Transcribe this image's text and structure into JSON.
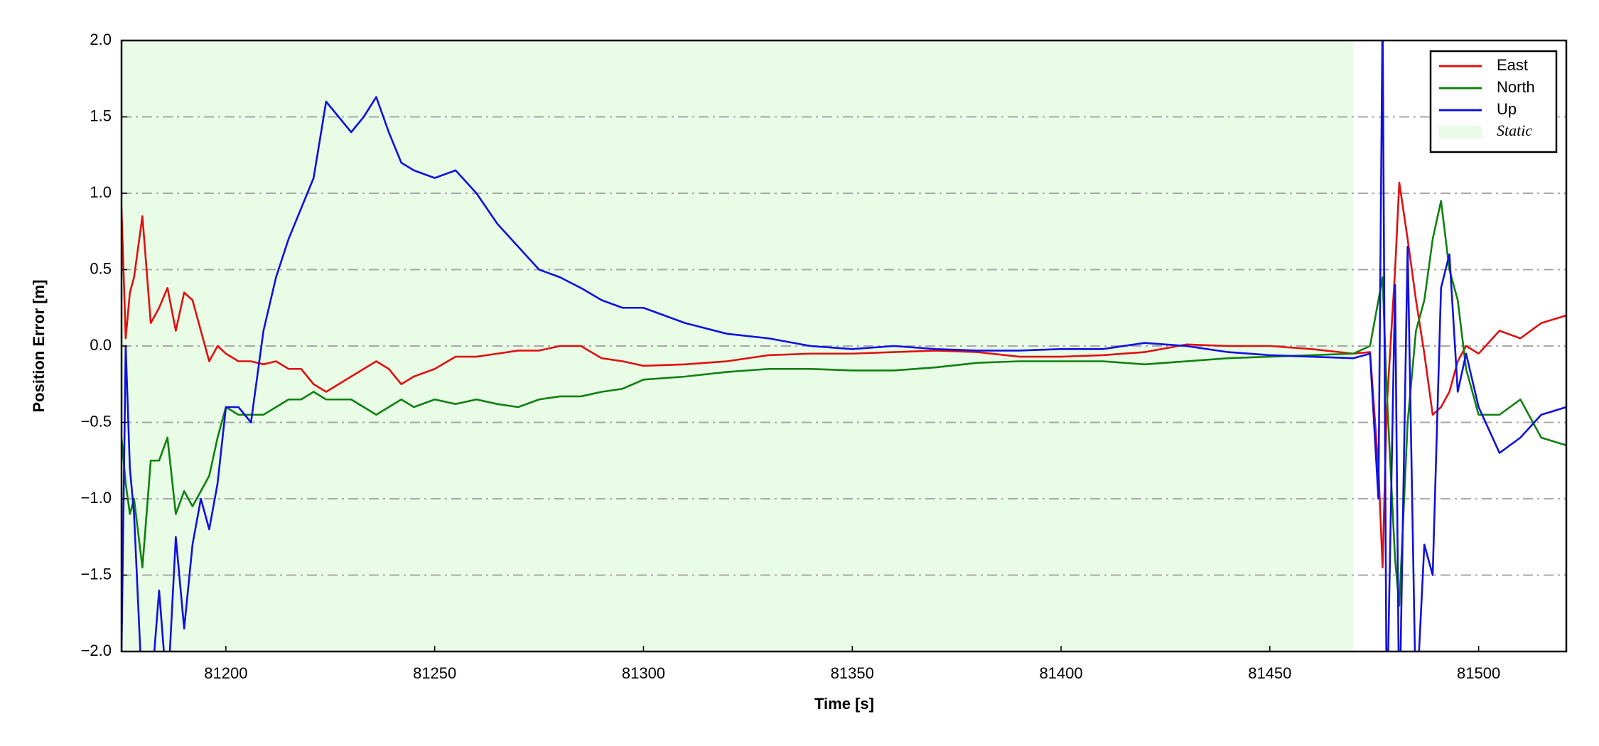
{
  "chart_data": {
    "type": "line",
    "xlabel": "Time [s]",
    "ylabel": "Position Error [m]",
    "x": [
      81175,
      81176,
      81177,
      81178,
      81180,
      81182,
      81184,
      81186,
      81188,
      81190,
      81192,
      81194,
      81196,
      81198,
      81200,
      81203,
      81206,
      81209,
      81212,
      81215,
      81218,
      81221,
      81224,
      81227,
      81230,
      81233,
      81236,
      81239,
      81242,
      81245,
      81250,
      81255,
      81260,
      81265,
      81270,
      81275,
      81280,
      81285,
      81290,
      81295,
      81300,
      81310,
      81320,
      81330,
      81340,
      81350,
      81360,
      81370,
      81380,
      81390,
      81400,
      81410,
      81420,
      81430,
      81440,
      81450,
      81460,
      81470,
      81474,
      81476,
      81477,
      81478,
      81480,
      81481,
      81483,
      81485,
      81487,
      81489,
      81491,
      81493,
      81495,
      81497,
      81500,
      81505,
      81510,
      81515,
      81521
    ],
    "series": [
      {
        "name": "East",
        "color": "#e01010",
        "values": [
          0.9,
          0.05,
          0.35,
          0.45,
          0.85,
          0.15,
          0.25,
          0.38,
          0.1,
          0.35,
          0.3,
          0.1,
          -0.1,
          0.0,
          -0.05,
          -0.1,
          -0.1,
          -0.12,
          -0.1,
          -0.15,
          -0.15,
          -0.25,
          -0.3,
          -0.25,
          -0.2,
          -0.15,
          -0.1,
          -0.15,
          -0.25,
          -0.2,
          -0.15,
          -0.07,
          -0.07,
          -0.05,
          -0.03,
          -0.03,
          0.0,
          0.0,
          -0.08,
          -0.1,
          -0.13,
          -0.12,
          -0.1,
          -0.06,
          -0.05,
          -0.05,
          -0.04,
          -0.03,
          -0.04,
          -0.07,
          -0.07,
          -0.06,
          -0.04,
          0.01,
          0.0,
          0.0,
          -0.02,
          -0.05,
          -0.04,
          -0.8,
          -1.45,
          -0.4,
          0.5,
          1.07,
          0.7,
          0.3,
          -0.05,
          -0.45,
          -0.4,
          -0.3,
          -0.1,
          0.0,
          -0.05,
          0.1,
          0.05,
          0.15,
          0.2
        ]
      },
      {
        "name": "North",
        "color": "#108010",
        "values": [
          -0.6,
          -0.9,
          -1.1,
          -1.0,
          -1.45,
          -0.75,
          -0.75,
          -0.6,
          -1.1,
          -0.95,
          -1.05,
          -0.95,
          -0.85,
          -0.6,
          -0.4,
          -0.45,
          -0.45,
          -0.45,
          -0.4,
          -0.35,
          -0.35,
          -0.3,
          -0.35,
          -0.35,
          -0.35,
          -0.4,
          -0.45,
          -0.4,
          -0.35,
          -0.4,
          -0.35,
          -0.38,
          -0.35,
          -0.38,
          -0.4,
          -0.35,
          -0.33,
          -0.33,
          -0.3,
          -0.28,
          -0.22,
          -0.2,
          -0.17,
          -0.15,
          -0.15,
          -0.16,
          -0.16,
          -0.14,
          -0.11,
          -0.1,
          -0.1,
          -0.1,
          -0.12,
          -0.1,
          -0.08,
          -0.07,
          -0.06,
          -0.05,
          0.0,
          0.3,
          0.45,
          -0.3,
          -1.4,
          -1.7,
          -0.5,
          0.1,
          0.3,
          0.7,
          0.95,
          0.5,
          0.3,
          -0.15,
          -0.45,
          -0.45,
          -0.35,
          -0.6,
          -0.65
        ]
      },
      {
        "name": "Up",
        "color": "#1010e0",
        "values": [
          -2.0,
          0.0,
          -0.8,
          -1.1,
          -2.3,
          -2.3,
          -1.6,
          -2.3,
          -1.25,
          -1.85,
          -1.3,
          -1.0,
          -1.2,
          -0.9,
          -0.4,
          -0.4,
          -0.5,
          0.1,
          0.45,
          0.7,
          0.9,
          1.1,
          1.6,
          1.5,
          1.4,
          1.5,
          1.63,
          1.4,
          1.2,
          1.15,
          1.1,
          1.15,
          1.0,
          0.8,
          0.65,
          0.5,
          0.45,
          0.38,
          0.3,
          0.25,
          0.25,
          0.15,
          0.08,
          0.05,
          0.0,
          -0.02,
          0.0,
          -0.02,
          -0.03,
          -0.03,
          -0.02,
          -0.02,
          0.02,
          0.0,
          -0.04,
          -0.06,
          -0.07,
          -0.08,
          -0.05,
          -1.0,
          2.2,
          -2.5,
          0.4,
          -2.5,
          0.65,
          -2.4,
          -1.3,
          -1.5,
          0.38,
          0.6,
          -0.3,
          -0.05,
          -0.4,
          -0.7,
          -0.6,
          -0.45,
          -0.4
        ]
      }
    ],
    "shade": {
      "label": "Static",
      "xrange": [
        81175,
        81470
      ],
      "color": "#e8fce6"
    },
    "xlim": [
      81175,
      81521
    ],
    "ylim": [
      -2,
      2
    ],
    "xticks": [
      81200,
      81250,
      81300,
      81350,
      81400,
      81450,
      81500
    ],
    "yticks": [
      {
        "value": -2,
        "label": "−2.0"
      },
      {
        "value": -1.5,
        "label": "−1.5"
      },
      {
        "value": -1,
        "label": "−1.0"
      },
      {
        "value": -0.5,
        "label": "−0.5"
      },
      {
        "value": 0,
        "label": "0.0"
      },
      0.5,
      {
        "value": 1,
        "label": "1.0"
      },
      1.5,
      {
        "value": 2,
        "label": "2.0"
      }
    ],
    "grid": true,
    "legend": "upper right"
  }
}
